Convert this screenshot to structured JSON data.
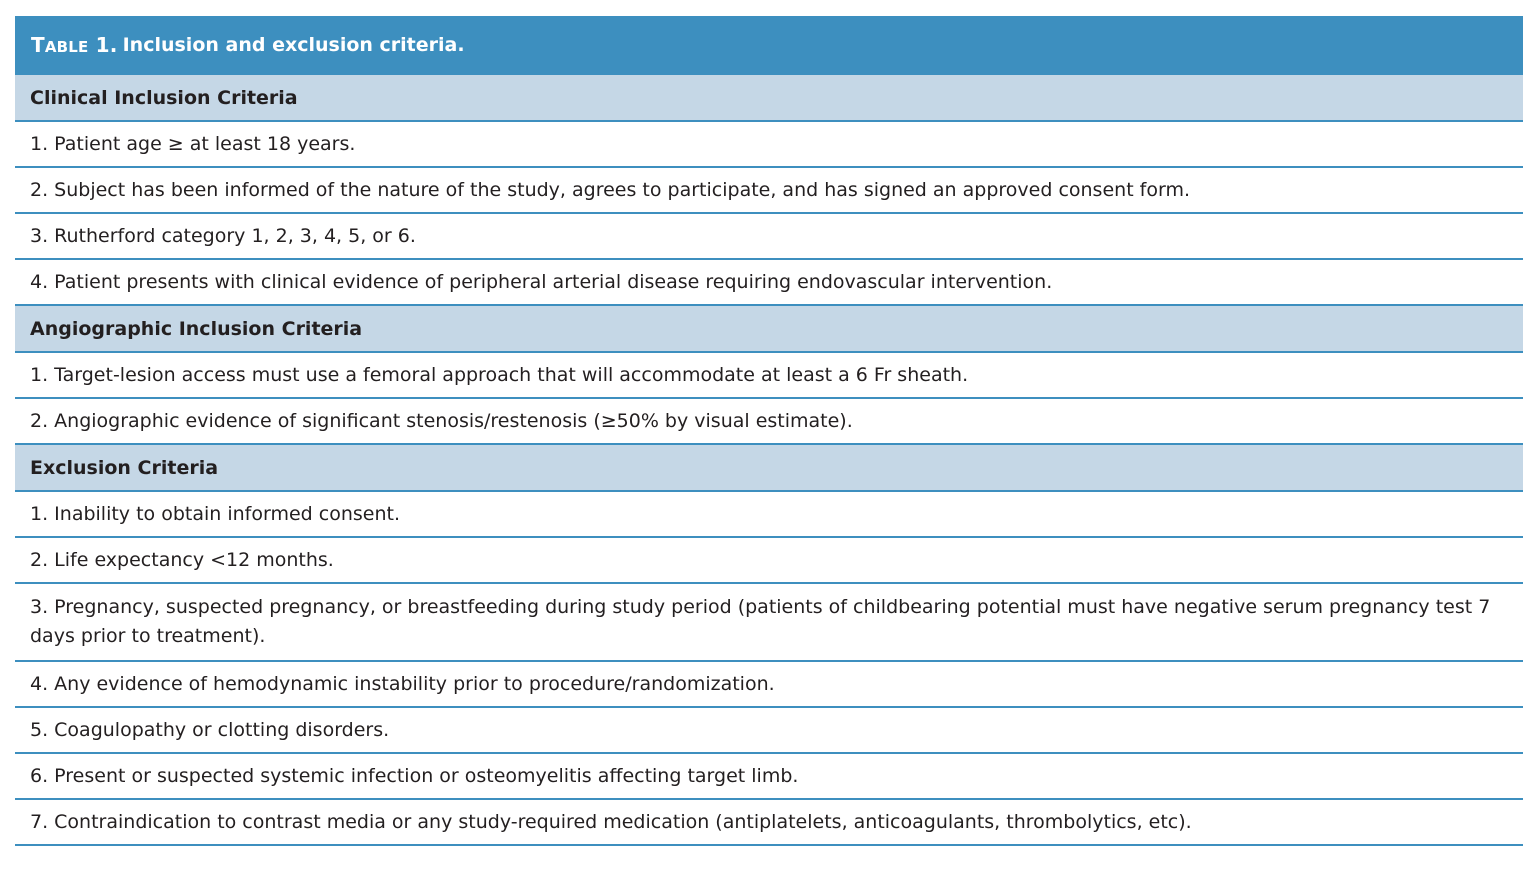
{
  "table": {
    "label_first": "T",
    "label_rest": "able",
    "label_number": "1.",
    "title": "Inclusion and exclusion criteria."
  },
  "sections": [
    {
      "heading": "Clinical Inclusion Criteria",
      "items": [
        "1. Patient age ≥ at least 18 years.",
        "2. Subject has been informed of the nature of the study, agrees to participate, and has signed an approved consent form.",
        "3. Rutherford category 1, 2, 3, 4, 5, or 6.",
        "4. Patient presents with clinical evidence of peripheral arterial disease requiring endovascular intervention."
      ]
    },
    {
      "heading": "Angiographic Inclusion Criteria",
      "items": [
        "1. Target-lesion access must use a femoral approach that will accommodate at least a 6 Fr sheath.",
        "2. Angiographic evidence of significant stenosis/restenosis (≥50% by visual estimate)."
      ]
    },
    {
      "heading": "Exclusion Criteria",
      "items": [
        "1. Inability to obtain informed consent.",
        "2. Life expectancy <12 months.",
        "3. Pregnancy, suspected pregnancy, or breastfeeding during study period (patients of childbearing potential must have negative serum pregnancy test 7 days prior to treatment).",
        "4. Any evidence of hemodynamic instability prior to procedure/randomization.",
        "5. Coagulopathy or clotting disorders.",
        "6. Present or suspected systemic infection or osteomyelitis affecting target limb.",
        "7. Contraindication to contrast media or any study-required medication (antiplatelets, anticoagulants, thrombolytics, etc)."
      ]
    }
  ]
}
